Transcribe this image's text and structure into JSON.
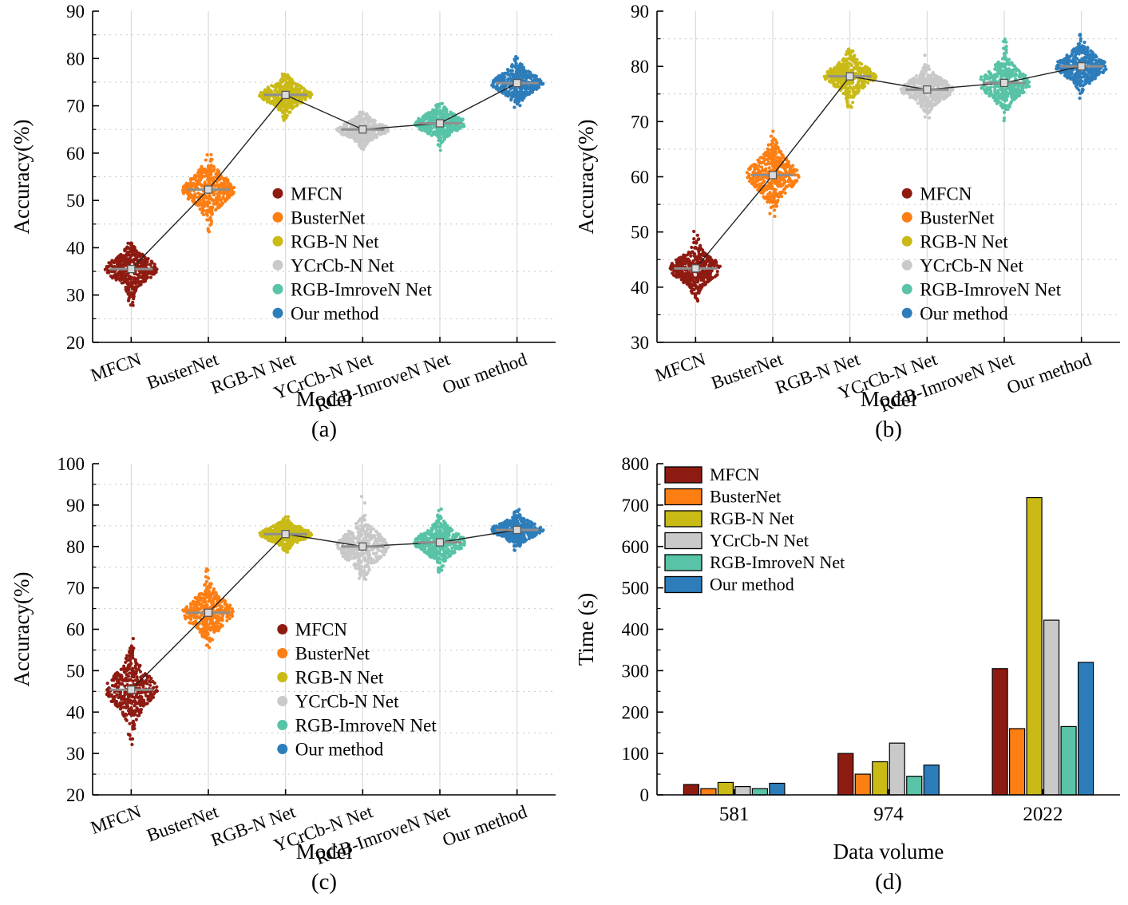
{
  "figure": {
    "series_colors": [
      "#8e1b12",
      "#fd7e12",
      "#c9ba16",
      "#c9c9c9",
      "#58c3a6",
      "#2d7dbb"
    ],
    "mean_line_color": "#222222",
    "mean_bar_color": "#8f8f8f",
    "legend_labels": [
      "MFCN",
      "BusterNet",
      "RGB-N Net",
      "YCrCb-N Net",
      "RGB-ImroveN Net",
      "Our method"
    ]
  },
  "chart_data": [
    {
      "id": "a",
      "type": "scatter",
      "variant": "beeswarm-violin",
      "ylabel": "Accuracy(%)",
      "xlabel": "Model",
      "sublabel": "(a)",
      "ylim": [
        20,
        90
      ],
      "ytick_step": 10,
      "grid": {
        "vertical_category_lines": true,
        "dotted_minor_horizontal": true
      },
      "categories": [
        "MFCN",
        "BusterNet",
        "RGB-N Net",
        "YCrCb-N Net",
        "RGB-ImroveN Net",
        "Our method"
      ],
      "series": [
        {
          "name": "MFCN",
          "mean": 35.5,
          "std": 2.2,
          "min": 26.5,
          "max": 41.5
        },
        {
          "name": "BusterNet",
          "mean": 52.3,
          "std": 2.6,
          "min": 42,
          "max": 60.5
        },
        {
          "name": "RGB-N Net",
          "mean": 72.3,
          "std": 1.7,
          "min": 66.5,
          "max": 77
        },
        {
          "name": "YCrCb-N Net",
          "mean": 65.0,
          "std": 1.4,
          "min": 60.5,
          "max": 69
        },
        {
          "name": "RGB-ImroveN Net",
          "mean": 66.3,
          "std": 1.6,
          "min": 60.5,
          "max": 70.5
        },
        {
          "name": "Our method",
          "mean": 74.8,
          "std": 1.8,
          "min": 69.5,
          "max": 80.5
        }
      ],
      "legend": {
        "position": "inside-middle-right",
        "x": 0.4,
        "y": 0.55,
        "dy": 30
      }
    },
    {
      "id": "b",
      "type": "scatter",
      "variant": "beeswarm-violin",
      "ylabel": "Accuracy(%)",
      "xlabel": "Model",
      "sublabel": "(b)",
      "ylim": [
        30,
        90
      ],
      "ytick_step": 10,
      "grid": {
        "vertical_category_lines": true,
        "dotted_minor_horizontal": true
      },
      "categories": [
        "MFCN",
        "BusterNet",
        "RGB-N Net",
        "YCrCb-N Net",
        "RGB-ImroveN Net",
        "Our method"
      ],
      "series": [
        {
          "name": "MFCN",
          "mean": 43.4,
          "std": 1.9,
          "min": 37,
          "max": 50.5
        },
        {
          "name": "BusterNet",
          "mean": 60.3,
          "std": 2.5,
          "min": 51.5,
          "max": 69
        },
        {
          "name": "RGB-N Net",
          "mean": 78.2,
          "std": 1.7,
          "min": 72.5,
          "max": 84
        },
        {
          "name": "YCrCb-N Net",
          "mean": 75.8,
          "std": 1.7,
          "min": 70.5,
          "max": 82.5
        },
        {
          "name": "RGB-ImroveN Net",
          "mean": 77.0,
          "std": 2.1,
          "min": 69,
          "max": 85
        },
        {
          "name": "Our method",
          "mean": 80.0,
          "std": 1.8,
          "min": 74,
          "max": 86.5
        }
      ],
      "legend": {
        "position": "inside-middle-right",
        "x": 0.54,
        "y": 0.55,
        "dy": 30
      }
    },
    {
      "id": "c",
      "type": "scatter",
      "variant": "beeswarm-violin",
      "ylabel": "Accuracy(%)",
      "xlabel": "Model",
      "sublabel": "(c)",
      "ylim": [
        20,
        100
      ],
      "ytick_step": 10,
      "grid": {
        "vertical_category_lines": true,
        "dotted_minor_horizontal": true
      },
      "categories": [
        "MFCN",
        "BusterNet",
        "RGB-N Net",
        "YCrCb-N Net",
        "RGB-ImroveN Net",
        "Our method"
      ],
      "series": [
        {
          "name": "MFCN",
          "mean": 45.4,
          "std": 3.6,
          "min": 32,
          "max": 60
        },
        {
          "name": "BusterNet",
          "mean": 64.0,
          "std": 2.9,
          "min": 54.5,
          "max": 75.5
        },
        {
          "name": "RGB-N Net",
          "mean": 83.0,
          "std": 1.5,
          "min": 78.5,
          "max": 87.5
        },
        {
          "name": "YCrCb-N Net",
          "mean": 80.0,
          "std": 3.0,
          "min": 72,
          "max": 94.5
        },
        {
          "name": "RGB-ImroveN Net",
          "mean": 81.0,
          "std": 2.3,
          "min": 73.5,
          "max": 91.5
        },
        {
          "name": "Our method",
          "mean": 84.0,
          "std": 1.6,
          "min": 79,
          "max": 89
        }
      ],
      "legend": {
        "position": "inside-middle-right",
        "x": 0.41,
        "y": 0.5,
        "dy": 30
      }
    },
    {
      "id": "d",
      "type": "bar",
      "ylabel": "Time (s)",
      "xlabel": "Data volume",
      "sublabel": "(d)",
      "ylim": [
        0,
        800
      ],
      "ytick_step": 100,
      "grid": {
        "vertical_category_lines": false,
        "dotted_minor_horizontal": false
      },
      "categories": [
        "581",
        "974",
        "2022"
      ],
      "series": [
        {
          "name": "MFCN",
          "values": [
            25,
            100,
            305
          ]
        },
        {
          "name": "BusterNet",
          "values": [
            15,
            50,
            160
          ]
        },
        {
          "name": "RGB-N Net",
          "values": [
            30,
            80,
            718
          ]
        },
        {
          "name": "YCrCb-N Net",
          "values": [
            20,
            125,
            422
          ]
        },
        {
          "name": "RGB-ImroveN Net",
          "values": [
            15,
            45,
            165
          ]
        },
        {
          "name": "Our method",
          "values": [
            28,
            72,
            320
          ]
        }
      ],
      "legend": {
        "position": "inside-top-left",
        "x": 0.02,
        "y": 0.01,
        "dy": 27.5
      }
    }
  ]
}
